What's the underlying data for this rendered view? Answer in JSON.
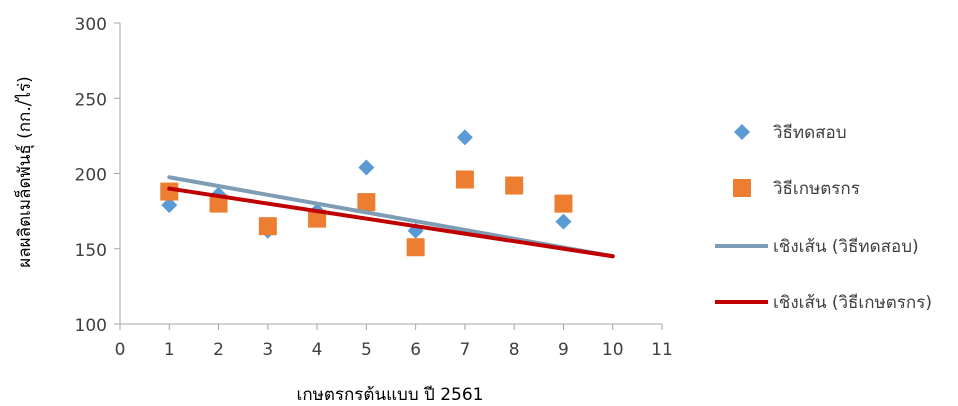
{
  "chart_data": {
    "type": "scatter",
    "title": "",
    "xlabel": "เกษตรกรต้นแบบ  ปี 2561",
    "ylabel": "ผลผลิตเมล็ดพันธุ์ (กก./ไร่)",
    "xlim": [
      0,
      11
    ],
    "ylim": [
      100,
      300
    ],
    "x_ticks": [
      0,
      1,
      2,
      3,
      4,
      5,
      6,
      7,
      8,
      9,
      10,
      11
    ],
    "y_ticks": [
      100,
      150,
      200,
      250,
      300
    ],
    "grid": false,
    "legend_position": "right",
    "series": [
      {
        "name": "วิธีทดสอบ",
        "kind": "scatter",
        "marker": "diamond",
        "color": "#5B9BD5",
        "x": [
          1,
          2,
          3,
          4,
          5,
          6,
          7,
          8,
          9
        ],
        "y": [
          179,
          186,
          162,
          175,
          204,
          162,
          224,
          192,
          168
        ]
      },
      {
        "name": "วิธีเกษตรกร",
        "kind": "scatter",
        "marker": "square",
        "color": "#ED7D31",
        "x": [
          1,
          2,
          3,
          4,
          5,
          6,
          7,
          8,
          9
        ],
        "y": [
          188,
          180,
          165,
          170,
          181,
          151,
          196,
          192,
          180
        ]
      },
      {
        "name": "เชิงเส้น (วิธีทดสอบ)",
        "kind": "trendline",
        "color": "#7F9CB5",
        "x": [
          1,
          10
        ],
        "y": [
          197.5,
          145
        ]
      },
      {
        "name": "เชิงเส้น (วิธีเกษตรกร)",
        "kind": "trendline",
        "color": "#C00000",
        "x": [
          1,
          10
        ],
        "y": [
          190,
          145
        ]
      }
    ]
  }
}
